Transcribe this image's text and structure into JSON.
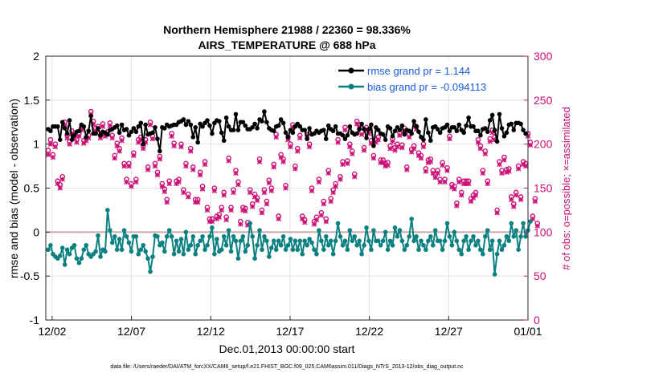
{
  "chart_data": {
    "type": "line",
    "title_line1": "Northern Hemisphere 21988 / 22360 = 98.336%",
    "title_line2": "AIRS_TEMPERATURE @ 688 hPa",
    "xlabel": "Dec.01,2013 00:00:00 start",
    "ylabel_left": "rmse and bias (model - observation)",
    "ylabel_right": "# of obs: o=possible; ×=assimilated",
    "footnote": "data file: /Users/raeder/DAI/ATM_forcXX/CAM6_setup/f.e21.FHIST_BGC.f09_025.CAM6assim.011/Diags_NTrS_2013-12/obs_diag_output.nc",
    "x_ticks": [
      "12/02",
      "12/07",
      "12/12",
      "12/17",
      "12/22",
      "12/27",
      "01/01"
    ],
    "x_tick_days": [
      1,
      6,
      11,
      16,
      21,
      26,
      31
    ],
    "xlim_days": [
      0.6,
      31
    ],
    "ylim_left": [
      -1,
      2
    ],
    "yticks_left": [
      "-1",
      "-0.5",
      "0",
      "0.5",
      "1",
      "1.5",
      "2"
    ],
    "ylim_right": [
      0,
      300
    ],
    "yticks_right": [
      "0",
      "50",
      "100",
      "150",
      "200",
      "250",
      "300"
    ],
    "colors": {
      "rmse": "#000000",
      "bias": "#0a8080",
      "obs": "#cc1177",
      "zero_line": "#c8a8a8",
      "grid": "#e2e2e2"
    },
    "legend": [
      {
        "name": "rmse grand pr = 1.144",
        "color": "#000000"
      },
      {
        "name": "bias grand pr = -0.094113",
        "color": "#0a8080"
      }
    ],
    "rmse": [
      1.17,
      1.15,
      1.2,
      1.2,
      1.2,
      1.05,
      1.25,
      1.18,
      1.12,
      1.27,
      1.05,
      1.1,
      1.14,
      1.15,
      1.22,
      1.2,
      1.08,
      1.15,
      1.32,
      1.12,
      1.12,
      1.18,
      1.1,
      1.14,
      1.13,
      1.11,
      1.16,
      1.17,
      1.19,
      1.21,
      1.13,
      1.22,
      1.16,
      1.17,
      1.1,
      1.14,
      1.18,
      1.14,
      1.2,
      1.24,
      1.0,
      1.22,
      1.11,
      1.12,
      1.13,
      1.19,
      1.06,
      0.92,
      1.19,
      1.18,
      1.22,
      1.2,
      1.21,
      1.22,
      1.22,
      1.25,
      1.26,
      1.28,
      1.22,
      1.26,
      1.22,
      1.08,
      1.19,
      1.02,
      1.23,
      1.2,
      1.24,
      1.27,
      1.21,
      1.12,
      1.24,
      1.27,
      1.26,
      1.13,
      1.04,
      1.3,
      1.2,
      1.16,
      1.16,
      1.34,
      1.16,
      1.25,
      1.25,
      1.21,
      1.17,
      1.17,
      1.19,
      1.23,
      1.18,
      1.28,
      1.26,
      1.37,
      1.25,
      1.18,
      1.16,
      1.15,
      1.2,
      1.21,
      1.28,
      1.24,
      1.13,
      1.08,
      1.16,
      1.13,
      1.2,
      1.23,
      1.2,
      1.16,
      1.16,
      1.06,
      1.18,
      1.11,
      1.12,
      1.15,
      1.13,
      1.15,
      1.16,
      1.06,
      1.21,
      1.17,
      1.15,
      1.2,
      1.12,
      1.12,
      1.1,
      1.06,
      1.1,
      1.2,
      1.13,
      1.11,
      1.12,
      1.17,
      1.23,
      1.17,
      1.07,
      1.17,
      1.22,
      0.98,
      1.19,
      1.16,
      1.12,
      1.11,
      1.05,
      1.2,
      1.18,
      1.09,
      1.15,
      1.19,
      1.16,
      1.21,
      1.11,
      1.16,
      1.15,
      1.12,
      1.26,
      1.2,
      1.14,
      1.08,
      1.05,
      1.28,
      1.13,
      1.04,
      1.19,
      1.2,
      1.17,
      1.13,
      1.18,
      1.19,
      1.22,
      1.15,
      1.19,
      1.19,
      1.15,
      1.22,
      1.16,
      1.13,
      1.21,
      1.3,
      1.2,
      1.2,
      1.15,
      1.15,
      1.1,
      1.17,
      1.18,
      1.14,
      1.27,
      1.33,
      1.16,
      1.03,
      1.34,
      1.18,
      1.09,
      1.13,
      1.22,
      1.23,
      1.16,
      1.24,
      1.24,
      1.23,
      1.16,
      1.12
    ],
    "bias": [
      -0.2,
      -0.15,
      -0.25,
      -0.28,
      -0.3,
      -0.27,
      -0.18,
      -0.37,
      -0.2,
      -0.25,
      -0.18,
      -0.15,
      -0.3,
      -0.35,
      -0.3,
      -0.2,
      -0.15,
      -0.25,
      -0.28,
      -0.25,
      -0.22,
      -0.04,
      -0.28,
      -0.2,
      -0.22,
      0.25,
      0.02,
      -0.12,
      -0.05,
      -0.2,
      -0.08,
      -0.2,
      0.02,
      -0.05,
      -0.12,
      -0.22,
      -0.05,
      -0.05,
      -0.25,
      -0.2,
      -0.15,
      -0.22,
      -0.3,
      -0.45,
      -0.28,
      -0.04,
      -0.05,
      -0.15,
      -0.12,
      -0.22,
      -0.05,
      0.02,
      -0.05,
      -0.25,
      -0.1,
      -0.22,
      -0.08,
      -0.25,
      0.0,
      -0.2,
      -0.15,
      -0.05,
      -0.25,
      -0.15,
      -0.1,
      -0.05,
      -0.2,
      -0.15,
      -0.05,
      0.05,
      -0.25,
      -0.08,
      -0.22,
      -0.2,
      -0.05,
      -0.15,
      0.02,
      -0.22,
      -0.05,
      -0.1,
      -0.3,
      -0.1,
      -0.05,
      -0.22,
      -0.15,
      0.1,
      -0.05,
      -0.3,
      -0.15,
      0.02,
      -0.2,
      -0.05,
      -0.1,
      -0.28,
      -0.18,
      -0.1,
      -0.2,
      -0.1,
      -0.15,
      -0.05,
      -0.2,
      -0.15,
      -0.08,
      -0.2,
      -0.1,
      -0.2,
      -0.1,
      -0.25,
      -0.1,
      -0.15,
      -0.08,
      -0.12,
      -0.2,
      -0.25,
      0.02,
      -0.1,
      -0.2,
      -0.05,
      -0.15,
      -0.1,
      -0.25,
      -0.1,
      0.1,
      -0.05,
      -0.15,
      -0.1,
      -0.2,
      0.02,
      -0.1,
      -0.05,
      -0.15,
      -0.1,
      -0.25,
      -0.15,
      0.05,
      -0.1,
      -0.2,
      0.02,
      -0.1,
      -0.1,
      -0.15,
      -0.1,
      0.0,
      -0.2,
      -0.1,
      -0.15,
      0.05,
      -0.05,
      0.02,
      -0.1,
      -0.2,
      -0.15,
      -0.05,
      0.15,
      -0.1,
      -0.05,
      -0.2,
      -0.1,
      -0.15,
      -0.2,
      -0.1,
      -0.05,
      -0.15,
      0.02,
      -0.1,
      -0.1,
      -0.2,
      -0.1,
      0.1,
      -0.05,
      -0.15,
      0.0,
      -0.1,
      -0.2,
      -0.25,
      -0.1,
      -0.05,
      -0.2,
      -0.1,
      -0.05,
      -0.15,
      -0.1,
      -0.2,
      -0.25,
      -0.05,
      0.02,
      -0.2,
      -0.1,
      -0.48,
      -0.25,
      -0.1,
      -0.2,
      -0.15,
      -0.05,
      -0.1,
      0.1,
      -0.05,
      0.02,
      -0.2,
      -0.05,
      0.1,
      -0.05,
      0.02,
      0.12
    ],
    "obs_possible": [
      193,
      205,
      188,
      200,
      158,
      154,
      163,
      225,
      210,
      203,
      215,
      210,
      205,
      212,
      219,
      204,
      207,
      210,
      237,
      226,
      218,
      220,
      210,
      223,
      212,
      214,
      224,
      210,
      187,
      201,
      195,
      207,
      178,
      160,
      178,
      155,
      190,
      160,
      205,
      208,
      198,
      205,
      174,
      225,
      209,
      178,
      168,
      186,
      155,
      149,
      137,
      158,
      212,
      201,
      158,
      160,
      200,
      148,
      178,
      143,
      195,
      174,
      137,
      137,
      168,
      152,
      180,
      128,
      115,
      115,
      150,
      118,
      120,
      128,
      145,
      117,
      184,
      128,
      148,
      170,
      157,
      112,
      128,
      127,
      111,
      148,
      132,
      143,
      139,
      183,
      125,
      148,
      135,
      159,
      150,
      177,
      211,
      118,
      188,
      183,
      153,
      208,
      200,
      222,
      175,
      195,
      210,
      118,
      114,
      211,
      200,
      150,
      112,
      117,
      160,
      122,
      135,
      115,
      170,
      138,
      148,
      155,
      205,
      163,
      180,
      219,
      181,
      200,
      192,
      166,
      226,
      222,
      214,
      196,
      219,
      215,
      204,
      187,
      205,
      208,
      182,
      182,
      178,
      179,
      198,
      206,
      196,
      200,
      213,
      199,
      218,
      174,
      211,
      194,
      198,
      220,
      190,
      187,
      200,
      172,
      182,
      183,
      170,
      165,
      170,
      160,
      179,
      160,
      173,
      209,
      154,
      152,
      133,
      160,
      145,
      158,
      158,
      158,
      138,
      142,
      145,
      205,
      198,
      170,
      192,
      158,
      206,
      216,
      208,
      125,
      180,
      170,
      185,
      171,
      172,
      140,
      132,
      145,
      175,
      140,
      180,
      178,
      212,
      202,
      118,
      138,
      110
    ],
    "obs_assimilated": [
      188,
      200,
      185,
      197,
      155,
      150,
      160,
      222,
      207,
      200,
      212,
      207,
      202,
      209,
      216,
      201,
      204,
      207,
      234,
      223,
      215,
      217,
      207,
      220,
      209,
      211,
      221,
      207,
      184,
      198,
      192,
      204,
      175,
      157,
      175,
      152,
      187,
      157,
      202,
      205,
      195,
      202,
      171,
      222,
      206,
      175,
      165,
      183,
      152,
      146,
      134,
      155,
      209,
      198,
      155,
      157,
      197,
      145,
      175,
      140,
      192,
      171,
      134,
      134,
      165,
      149,
      177,
      125,
      112,
      112,
      147,
      115,
      117,
      125,
      142,
      114,
      181,
      125,
      145,
      167,
      154,
      109,
      125,
      124,
      108,
      145,
      129,
      140,
      136,
      180,
      122,
      145,
      132,
      156,
      147,
      174,
      208,
      115,
      185,
      180,
      150,
      205,
      197,
      219,
      172,
      192,
      207,
      115,
      111,
      208,
      197,
      147,
      109,
      114,
      157,
      119,
      132,
      112,
      167,
      135,
      145,
      152,
      202,
      160,
      177,
      216,
      178,
      197,
      189,
      163,
      223,
      219,
      211,
      193,
      216,
      212,
      201,
      184,
      202,
      205,
      179,
      179,
      175,
      176,
      195,
      203,
      193,
      197,
      210,
      196,
      215,
      171,
      208,
      191,
      195,
      217,
      187,
      184,
      197,
      169,
      179,
      180,
      167,
      162,
      167,
      157,
      176,
      157,
      170,
      206,
      151,
      149,
      130,
      157,
      142,
      155,
      155,
      155,
      135,
      139,
      142,
      202,
      195,
      167,
      189,
      155,
      203,
      213,
      205,
      122,
      177,
      167,
      182,
      168,
      169,
      137,
      129,
      142,
      172,
      137,
      177,
      175,
      209,
      199,
      115,
      135,
      107
    ]
  }
}
